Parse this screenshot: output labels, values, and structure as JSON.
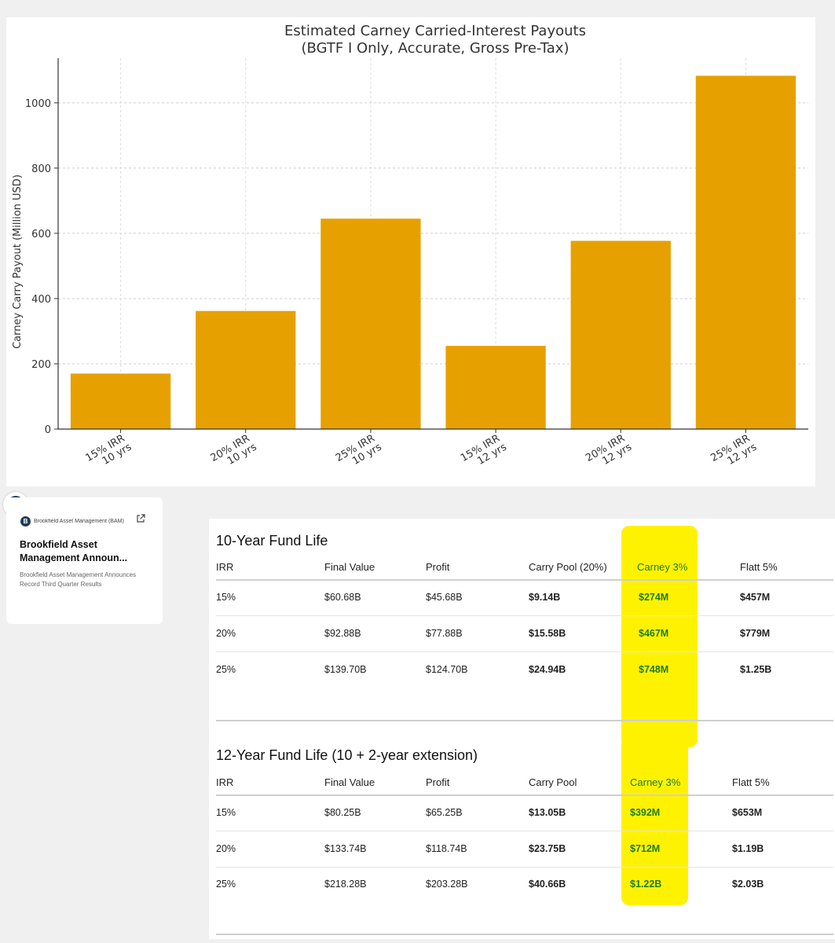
{
  "chart_data": {
    "type": "bar",
    "title": "Estimated Carney Carried-Interest Payouts",
    "subtitle": "(BGTF I Only, Accurate, Gross Pre-Tax)",
    "ylabel": "Carney Carry Payout (Million USD)",
    "xlabel": "",
    "categories": [
      [
        "15% IRR",
        "10 yrs"
      ],
      [
        "20% IRR",
        "10 yrs"
      ],
      [
        "25% IRR",
        "10 yrs"
      ],
      [
        "15% IRR",
        "12 yrs"
      ],
      [
        "20% IRR",
        "12 yrs"
      ],
      [
        "25% IRR",
        "12 yrs"
      ]
    ],
    "values": [
      170,
      362,
      645,
      255,
      577,
      1083
    ],
    "ylim": [
      0,
      1137
    ],
    "yticks": [
      0,
      200,
      400,
      600,
      800,
      1000
    ],
    "grid": true,
    "bar_color": "#e6a100"
  },
  "news_card": {
    "badge_letter": "B",
    "source": "Brookfield Asset Management (BAM)",
    "headline": "Brookfield Asset Management Announ...",
    "snippet": "Brookfield Asset Management Announces Record Third Quarter Results",
    "icon": "external-link-icon"
  },
  "tables": {
    "highlight_color": "#fff200",
    "ten_year": {
      "title": "10-Year Fund Life",
      "headers": [
        "IRR",
        "Final Value",
        "Profit",
        "Carry Pool (20%)",
        "Carney 3%",
        "Flatt 5%"
      ],
      "rows": [
        [
          "15%",
          "$60.68B",
          "$45.68B",
          "$9.14B",
          "$274M",
          "$457M"
        ],
        [
          "20%",
          "$92.88B",
          "$77.88B",
          "$15.58B",
          "$467M",
          "$779M"
        ],
        [
          "25%",
          "$139.70B",
          "$124.70B",
          "$24.94B",
          "$748M",
          "$1.25B"
        ]
      ]
    },
    "twelve_year": {
      "title": "12-Year Fund Life (10 + 2-year extension)",
      "headers": [
        "IRR",
        "Final Value",
        "Profit",
        "Carry Pool",
        "Carney 3%",
        "Flatt 5%"
      ],
      "rows": [
        [
          "15%",
          "$80.25B",
          "$65.25B",
          "$13.05B",
          "$392M",
          "$653M"
        ],
        [
          "20%",
          "$133.74B",
          "$118.74B",
          "$23.75B",
          "$712M",
          "$1.19B"
        ],
        [
          "25%",
          "$218.28B",
          "$203.28B",
          "$40.66B",
          "$1.22B",
          "$2.03B"
        ]
      ]
    }
  }
}
